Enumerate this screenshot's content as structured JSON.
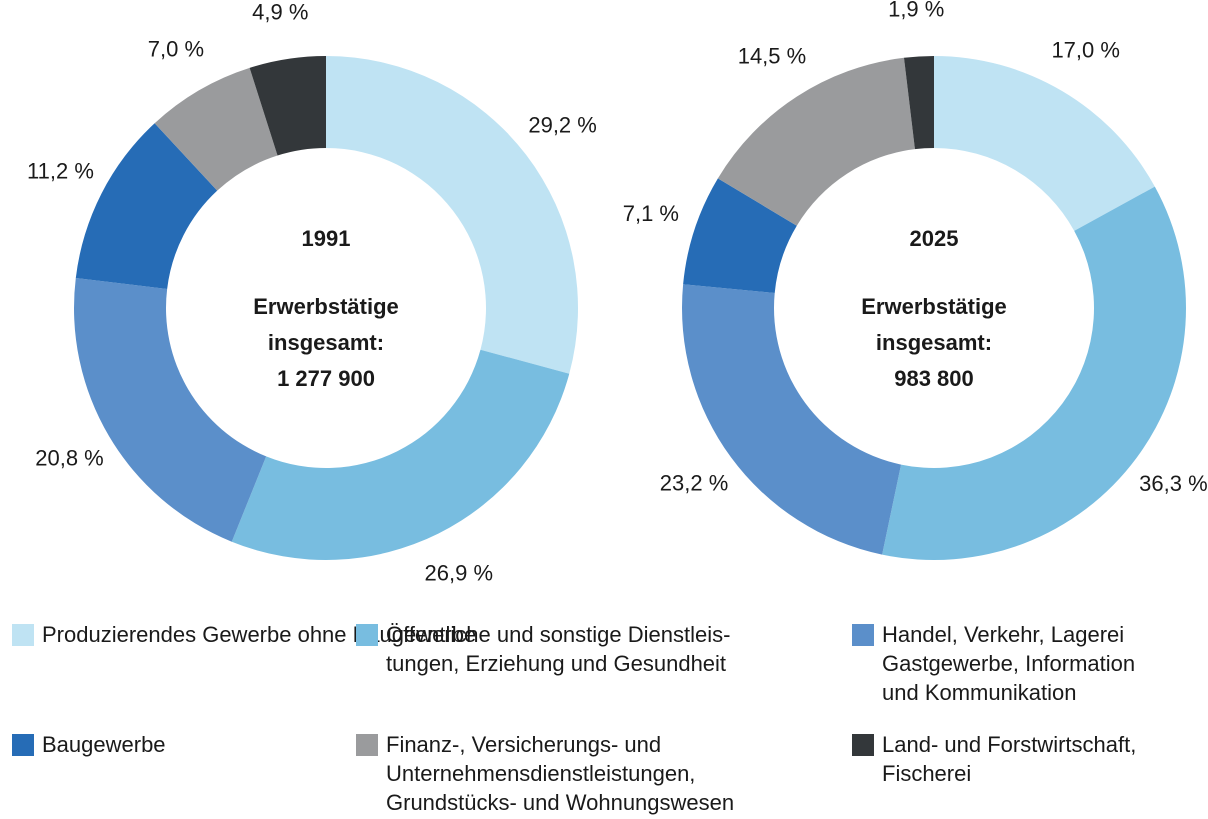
{
  "chart_data": [
    {
      "type": "donut",
      "title": "1991",
      "center_label": "Erwerbstätige\ninsgesamt:",
      "total_label": "1 277 900",
      "categories": [
        "Produzierendes Gewerbe ohne Baugewerbe",
        "Öffentliche und sonstige Dienstleis-\ntungen, Erziehung und Gesundheit",
        "Handel, Verkehr, Lagerei\nGastgewerbe, Information\nund Kommunikation",
        "Baugewerbe",
        "Finanz-, Versicherungs- und\nUnternehmensdienstleistungen,\nGrundstücks- und Wohnungswesen",
        "Land- und Forstwirtschaft,\nFischerei"
      ],
      "values": [
        29.2,
        26.9,
        20.8,
        11.2,
        7.0,
        4.9
      ],
      "value_labels": [
        "29,2 %",
        "26,9 %",
        "20,8 %",
        "11,2 %",
        "7,0 %",
        "4,9 %"
      ],
      "colors": [
        "#bfe3f3",
        "#78bde0",
        "#5b8fca",
        "#266cb6",
        "#9a9b9d",
        "#33373a"
      ]
    },
    {
      "type": "donut",
      "title": "2025",
      "center_label": "Erwerbstätige\ninsgesamt:",
      "total_label": "983 800",
      "categories": [
        "Produzierendes Gewerbe ohne Baugewerbe",
        "Öffentliche und sonstige Dienstleis-\ntungen, Erziehung und Gesundheit",
        "Handel, Verkehr, Lagerei\nGastgewerbe, Information\nund Kommunikation",
        "Baugewerbe",
        "Finanz-, Versicherungs- und\nUnternehmensdienstleistungen,\nGrundstücks- und Wohnungswesen",
        "Land- und Forstwirtschaft,\nFischerei"
      ],
      "values": [
        17.0,
        36.3,
        23.2,
        7.1,
        14.5,
        1.9
      ],
      "value_labels": [
        "17,0 %",
        "36,3 %",
        "23,2 %",
        "7,1 %",
        "14,5 %",
        "1,9 %"
      ],
      "colors": [
        "#bfe3f3",
        "#78bde0",
        "#5b8fca",
        "#266cb6",
        "#9a9b9d",
        "#33373a"
      ]
    }
  ]
}
